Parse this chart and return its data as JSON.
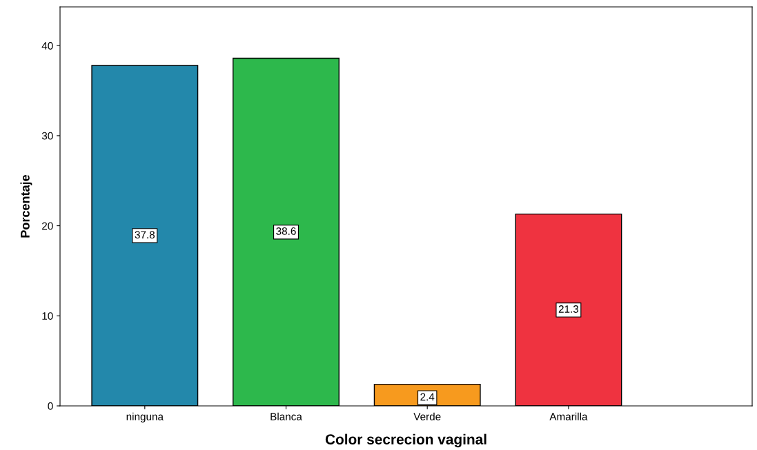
{
  "chart_data": {
    "type": "bar",
    "xlabel": "Color secrecion vaginal",
    "ylabel": "Porcentaje",
    "categories": [
      "ninguna",
      "Blanca",
      "Verde",
      "Amarilla"
    ],
    "values": [
      37.8,
      38.6,
      2.4,
      21.3
    ],
    "colors": [
      "#2388ab",
      "#2db84c",
      "#f79a1e",
      "#ef3340"
    ],
    "ylim": [
      0,
      44.3
    ],
    "yticks": [
      0,
      10,
      20,
      30,
      40
    ],
    "data_labels": true,
    "grid": false,
    "legend": false
  }
}
